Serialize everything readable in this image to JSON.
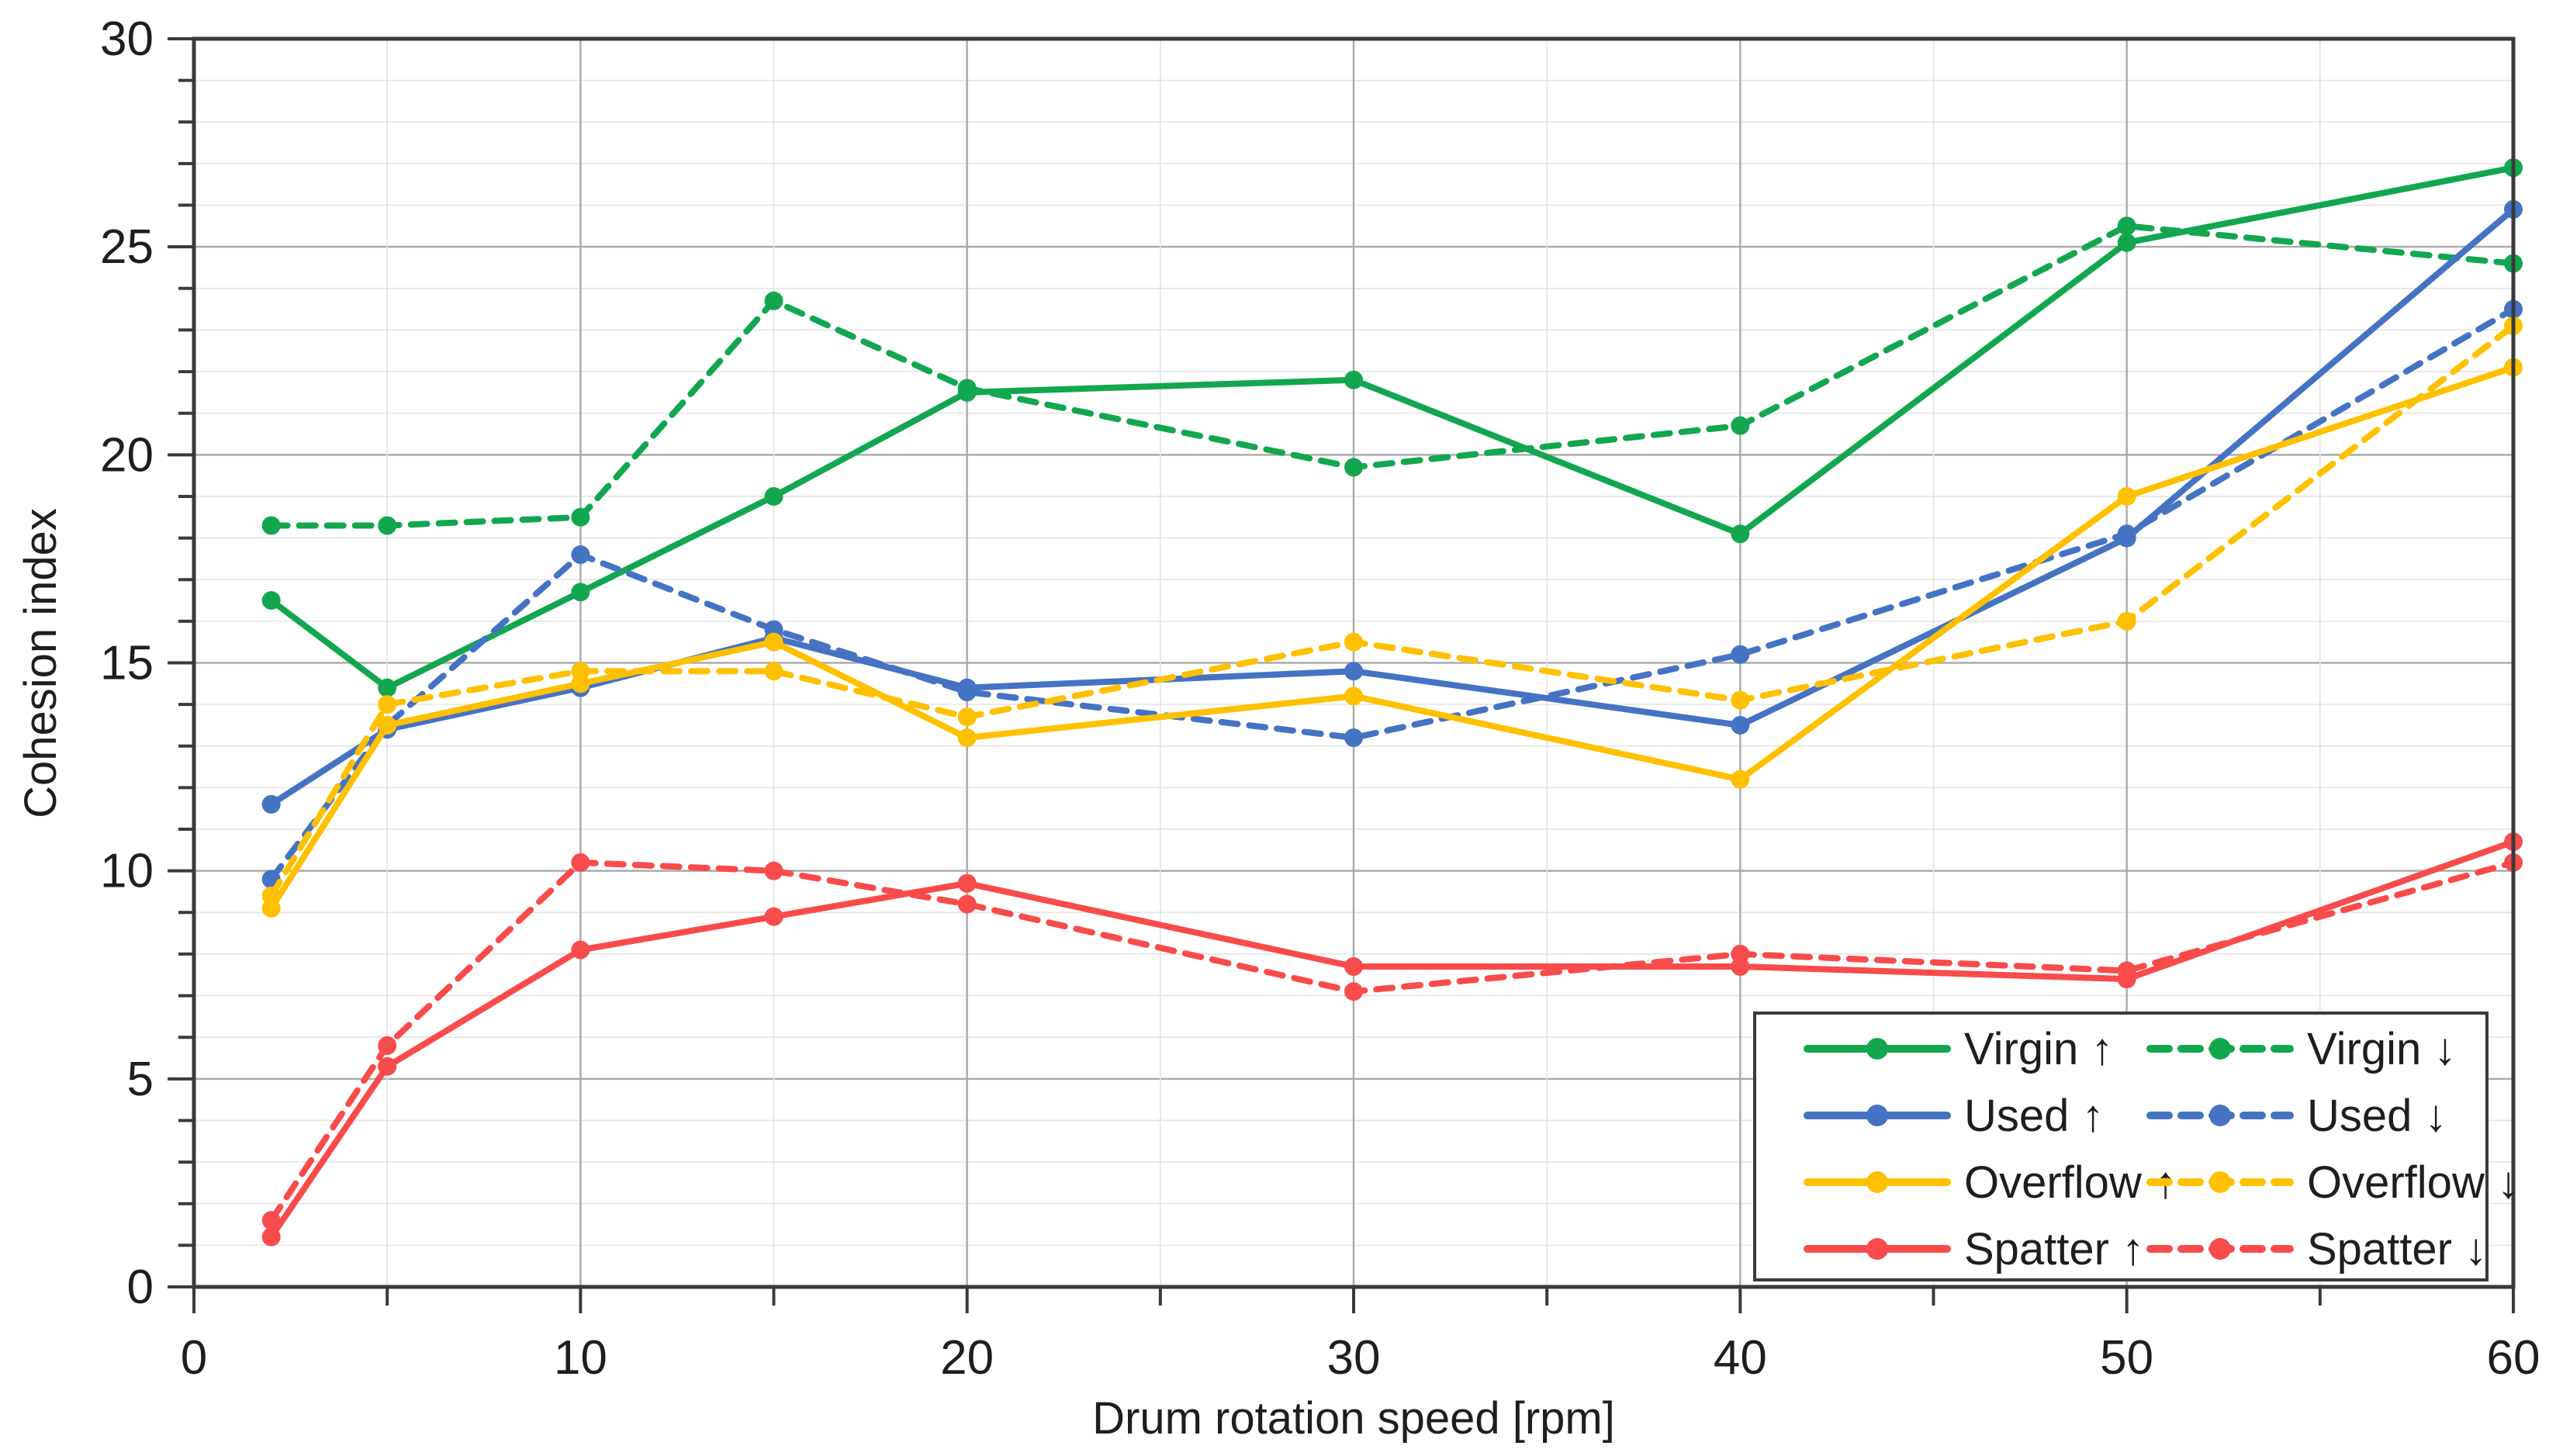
{
  "chart_data": {
    "type": "line",
    "title": "",
    "xlabel": "Drum rotation speed [rpm]",
    "ylabel": "Cohesion index",
    "xlim": [
      0,
      60
    ],
    "ylim": [
      0,
      30
    ],
    "x_major_ticks": [
      0,
      10,
      20,
      30,
      40,
      50,
      60
    ],
    "x_minor_step": 5,
    "y_major_step": 5,
    "y_minor_step": 1,
    "grid": "on",
    "legend_position": "lower right",
    "x": [
      2,
      5,
      10,
      15,
      20,
      30,
      40,
      50,
      60
    ],
    "series": [
      {
        "name": "Virgin ↑",
        "id": "virgin-up",
        "color": "#12A74F",
        "style": "solid",
        "values": [
          16.5,
          14.4,
          16.7,
          19.0,
          21.5,
          21.8,
          18.1,
          25.1,
          26.9
        ]
      },
      {
        "name": "Virgin ↓",
        "id": "virgin-down",
        "color": "#12A74F",
        "style": "dashed",
        "values": [
          18.3,
          18.3,
          18.5,
          23.7,
          21.6,
          19.7,
          20.7,
          25.5,
          24.6
        ]
      },
      {
        "name": "Used ↑",
        "id": "used-up",
        "color": "#4573C4",
        "style": "solid",
        "values": [
          11.6,
          13.4,
          14.4,
          15.6,
          14.4,
          14.8,
          13.5,
          18.0,
          25.9
        ]
      },
      {
        "name": "Used ↓",
        "id": "used-down",
        "color": "#4573C4",
        "style": "dashed",
        "values": [
          9.8,
          13.5,
          17.6,
          15.8,
          14.3,
          13.2,
          15.2,
          18.1,
          23.5
        ]
      },
      {
        "name": "Overflow ↑",
        "id": "overflow-up",
        "color": "#FFC000",
        "style": "solid",
        "values": [
          9.1,
          13.5,
          14.5,
          15.5,
          13.2,
          14.2,
          12.2,
          19.0,
          22.1
        ]
      },
      {
        "name": "Overflow ↓",
        "id": "overflow-down",
        "color": "#FFC000",
        "style": "dashed",
        "values": [
          9.4,
          14.0,
          14.8,
          14.8,
          13.7,
          15.5,
          14.1,
          16.0,
          23.1
        ]
      },
      {
        "name": "Spatter ↑",
        "id": "spatter-up",
        "color": "#F94B4B",
        "style": "solid",
        "values": [
          1.2,
          5.3,
          8.1,
          8.9,
          9.7,
          7.7,
          7.7,
          7.4,
          10.7
        ]
      },
      {
        "name": "Spatter ↓",
        "id": "spatter-down",
        "color": "#F94B4B",
        "style": "dashed",
        "values": [
          1.6,
          5.8,
          10.2,
          10.0,
          9.2,
          7.1,
          8.0,
          7.6,
          10.2
        ]
      }
    ],
    "colors": {
      "grid_minor": "#E4E4E4",
      "grid_major": "#ACACAC",
      "axis": "#3A3A3A",
      "text": "#1E1E1E",
      "legend_border": "#3A3A3A",
      "background": "#FFFFFF"
    }
  }
}
